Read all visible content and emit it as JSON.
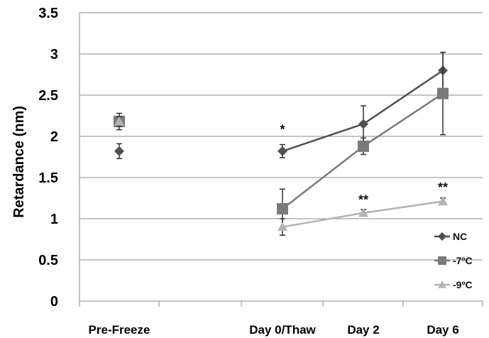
{
  "chart_data": {
    "type": "line",
    "title": "",
    "xlabel": "",
    "ylabel": "Retardance (nm)",
    "ylim": [
      0,
      3.5
    ],
    "yticks": [
      "0",
      "0.5",
      "1",
      "1.5",
      "2",
      "2.5",
      "3",
      "3.5"
    ],
    "categories": [
      "Pre-Freeze",
      "Day 0/Thaw",
      "Day 2",
      "Day 6"
    ],
    "grid": true,
    "legend_position": "bottom-right",
    "series": [
      {
        "name": "NC",
        "color": "#505050",
        "marker": "diamond",
        "values": [
          1.82,
          1.82,
          2.15,
          2.8
        ],
        "errors": [
          0.09,
          0.08,
          0.22,
          0.22
        ],
        "connected_from": 1
      },
      {
        "name": "-7ºC",
        "color": "#7a7a7a",
        "marker": "square",
        "values": [
          2.18,
          1.12,
          1.88,
          2.52
        ],
        "errors": [
          0.1,
          0.24,
          0.1,
          0.5
        ],
        "connected_from": 1
      },
      {
        "name": "-9ºC",
        "color": "#b3b3b3",
        "marker": "triangle",
        "values": [
          2.18,
          0.9,
          1.07,
          1.21
        ],
        "errors": [
          0.06,
          0.1,
          0.04,
          0.04
        ],
        "connected_from": 1
      }
    ],
    "annotations": [
      {
        "text": "*",
        "category": 1,
        "y": 2.08
      },
      {
        "text": "**",
        "category": 2,
        "y": 1.23
      },
      {
        "text": "**",
        "category": 3,
        "y": 1.38
      }
    ]
  }
}
